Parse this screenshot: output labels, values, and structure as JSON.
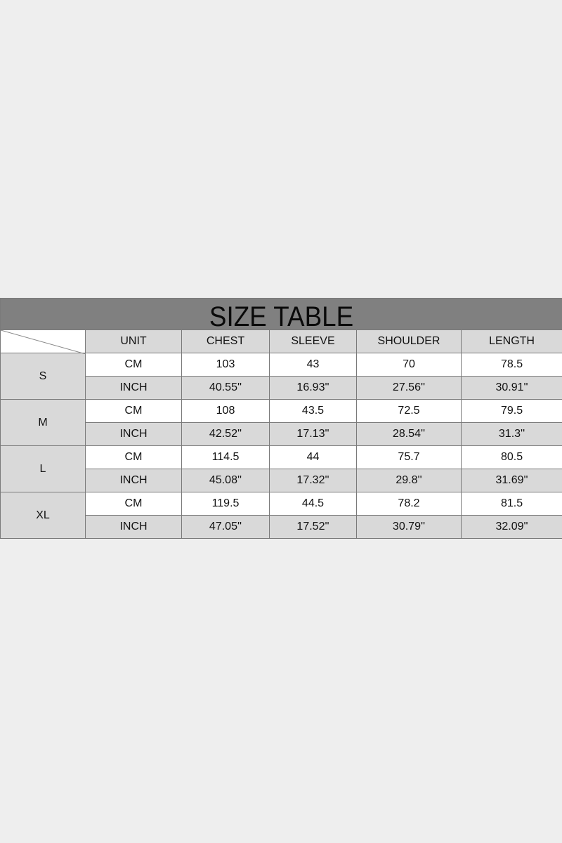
{
  "title": "SIZE TABLE",
  "headers": [
    "UNIT",
    "CHEST",
    "SLEEVE",
    "SHOULDER",
    "LENGTH"
  ],
  "rows": [
    {
      "size": "S",
      "cm": [
        "CM",
        "103",
        "43",
        "70",
        "78.5"
      ],
      "inch": [
        "INCH",
        "40.55''",
        "16.93''",
        "27.56''",
        "30.91''"
      ]
    },
    {
      "size": "M",
      "cm": [
        "CM",
        "108",
        "43.5",
        "72.5",
        "79.5"
      ],
      "inch": [
        "INCH",
        "42.52''",
        "17.13''",
        "28.54''",
        "31.3''"
      ]
    },
    {
      "size": "L",
      "cm": [
        "CM",
        "114.5",
        "44",
        "75.7",
        "80.5"
      ],
      "inch": [
        "INCH",
        "45.08''",
        "17.32''",
        "29.8''",
        "31.69''"
      ]
    },
    {
      "size": "XL",
      "cm": [
        "CM",
        "119.5",
        "44.5",
        "78.2",
        "81.5"
      ],
      "inch": [
        "INCH",
        "47.05''",
        "17.52''",
        "30.79''",
        "32.09''"
      ]
    }
  ],
  "colors": {
    "title_bar": "#808080",
    "shaded_cell": "#d9d9d9",
    "background": "#eeeeee"
  }
}
